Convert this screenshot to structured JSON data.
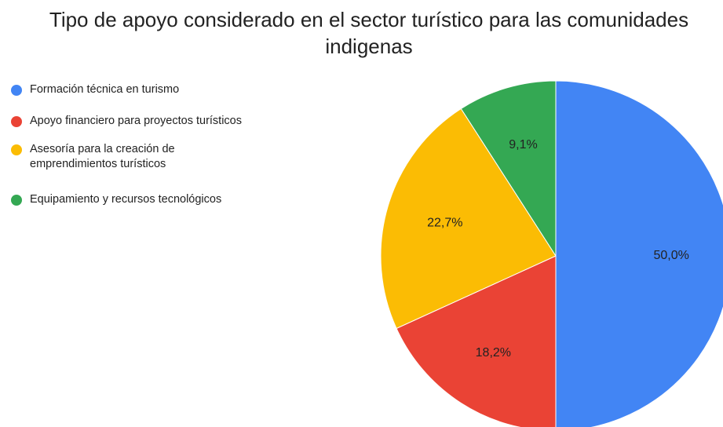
{
  "chart_data": {
    "type": "pie",
    "title": "Tipo de apoyo considerado en el sector turístico para las comunidades indigenas",
    "categories": [
      "Formación técnica en turismo",
      "Apoyo financiero para proyectos turísticos",
      "Asesoría para la creación de\nemprendimientos turísticos",
      "Equipamiento y recursos tecnológicos"
    ],
    "values": [
      50.0,
      18.2,
      22.7,
      9.1
    ],
    "value_labels": [
      "50,0%",
      "18,2%",
      "22,7%",
      "9,1%"
    ],
    "colors": [
      "#4285f4",
      "#ea4335",
      "#fbbc04",
      "#34a853"
    ],
    "legend": "left"
  }
}
